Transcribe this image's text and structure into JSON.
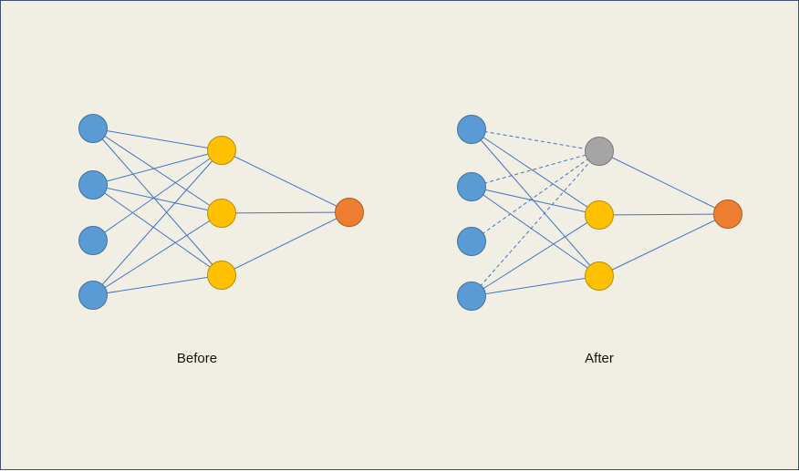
{
  "colors": {
    "background": "#f1efe3",
    "border": "#3b5378",
    "edge": "#4472c4",
    "input_fill": "#5b9bd5",
    "input_stroke": "#41719c",
    "hidden_fill": "#ffc000",
    "hidden_stroke": "#bc8c00",
    "output_fill": "#ed7d31",
    "output_stroke": "#ae5a21",
    "dropped_fill": "#a5a5a5",
    "dropped_stroke": "#787878"
  },
  "diagrams": [
    {
      "caption": "Before",
      "dropped_hidden_unit": null
    },
    {
      "caption": "After",
      "dropped_hidden_unit": 0
    }
  ]
}
